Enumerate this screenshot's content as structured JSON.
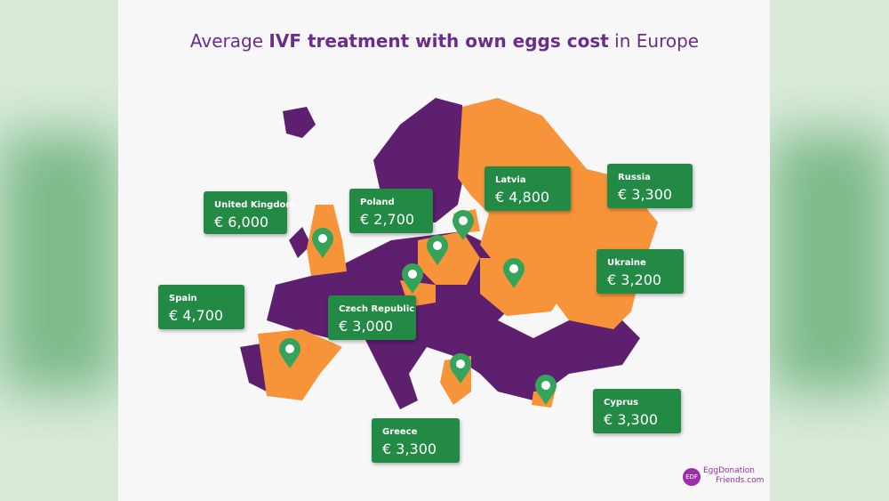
{
  "title": {
    "before": "Average",
    "bold": "IVF treatment with own eggs cost",
    "after": "in Europe"
  },
  "labels": [
    {
      "country": "United Kingdom",
      "price": "€ 6,000"
    },
    {
      "country": "Poland",
      "price": "€ 2,700"
    },
    {
      "country": "Latvia",
      "price": "€ 4,800"
    },
    {
      "country": "Russia",
      "price": "€ 3,300"
    },
    {
      "country": "Ukraine",
      "price": "€ 3,200"
    },
    {
      "country": "Spain",
      "price": "€ 4,700"
    },
    {
      "country": "Czech Republic",
      "price": "€ 3,000"
    },
    {
      "country": "Cyprus",
      "price": "€ 3,300"
    },
    {
      "country": "Greece",
      "price": "€ 3,300"
    }
  ],
  "logo": {
    "badge": "EDF",
    "line1": "EggDonation",
    "line2": "Friends.com"
  }
}
